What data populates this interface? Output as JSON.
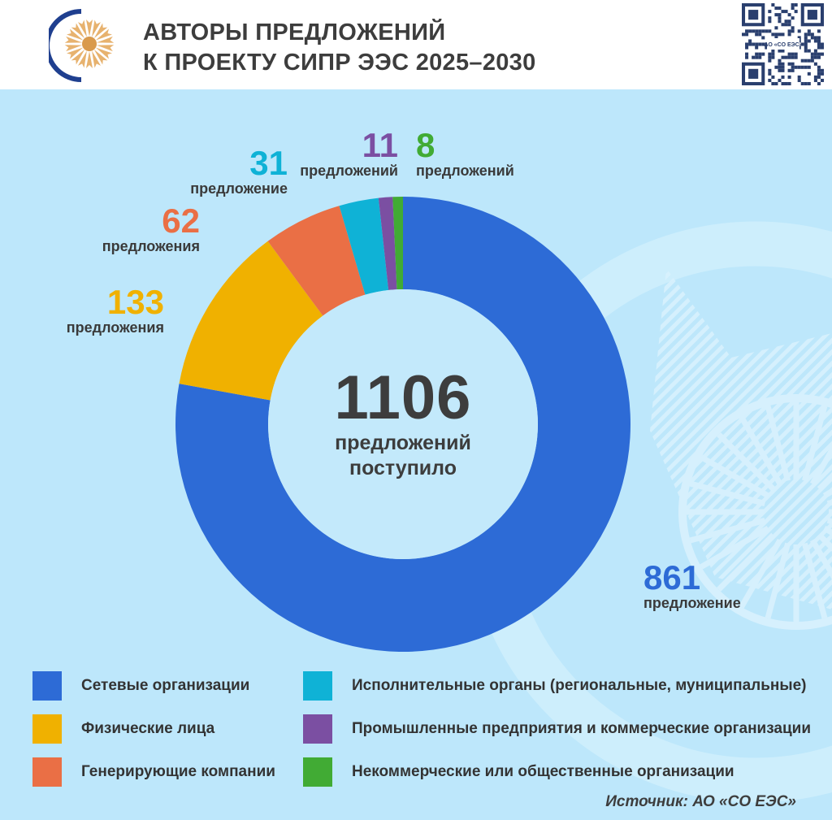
{
  "header": {
    "title_line1": "АВТОРЫ ПРЕДЛОЖЕНИЙ",
    "title_line2": "К ПРОЕКТУ СИПР ЭЭС 2025–2030",
    "qr_caption": "АО «СО ЕЭС»"
  },
  "colors": {
    "blue": "#2d6bd6",
    "yellow": "#f0b100",
    "orange": "#ea6f45",
    "cyan": "#0fb2d6",
    "purple": "#7b4fa2",
    "green": "#41ab34",
    "background": "#bde7fb",
    "text": "#3d3d3d"
  },
  "chart_data": {
    "type": "pie",
    "donut": true,
    "title": "АВТОРЫ ПРЕДЛОЖЕНИЙ К ПРОЕКТУ СИПР ЭЭС 2025–2030",
    "total": 1106,
    "total_text_line1": "предложений",
    "total_text_line2": "поступило",
    "slices": [
      {
        "name": "Сетевые организации",
        "value": 861,
        "unit": "предложение",
        "color": "#2d6bd6"
      },
      {
        "name": "Физические лица",
        "value": 133,
        "unit": "предложения",
        "color": "#f0b100"
      },
      {
        "name": "Генерирующие компании",
        "value": 62,
        "unit": "предложения",
        "color": "#ea6f45"
      },
      {
        "name": "Исполнительные органы (региональные, муниципальные)",
        "value": 31,
        "unit": "предложение",
        "color": "#0fb2d6"
      },
      {
        "name": "Промышленные предприятия и коммерческие организации",
        "value": 11,
        "unit": "предложений",
        "color": "#7b4fa2"
      },
      {
        "name": "Некоммерческие или общественные организации",
        "value": 8,
        "unit": "предложений",
        "color": "#41ab34"
      }
    ],
    "legend_position": "bottom"
  },
  "source": "Источник: АО «СО ЕЭС»"
}
